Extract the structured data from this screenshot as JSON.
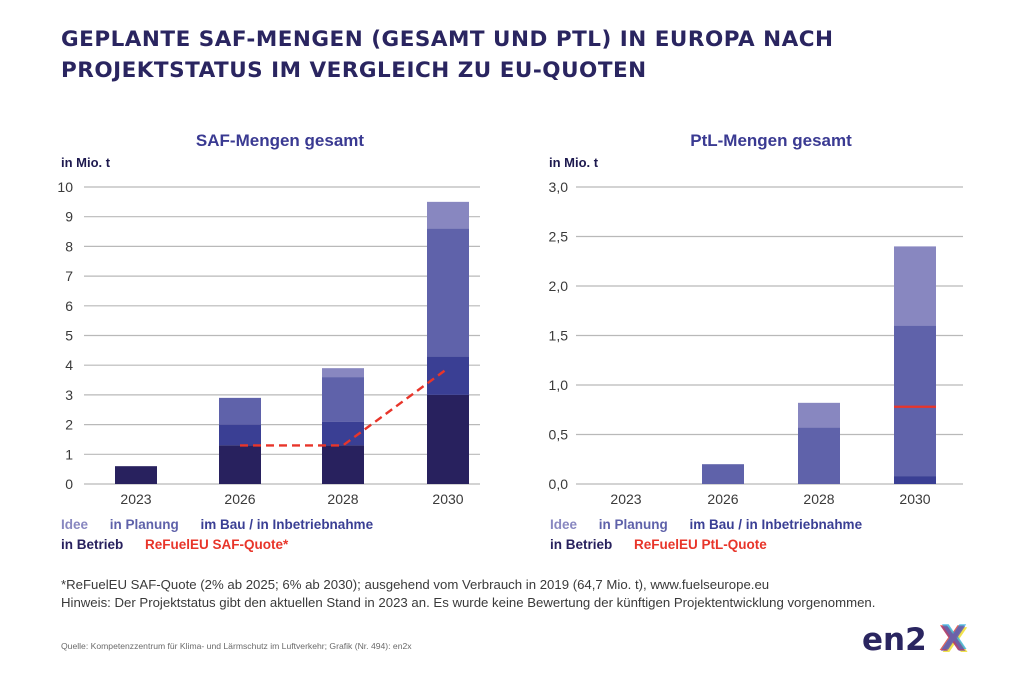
{
  "title": {
    "line1": "Geplante SAF-Mengen (gesamt und PtL) in Europa nach",
    "line2": "Projektstatus im Vergleich zu EU-Quoten"
  },
  "colors": {
    "in_betrieb": "#28215e",
    "im_bau": "#3a3f94",
    "in_planung": "#5f62aa",
    "idee": "#8887c0",
    "quote": "#e8352a",
    "title": "#2a2560"
  },
  "legend_saf": {
    "idee": "Idee",
    "in_planung": "in Planung",
    "im_bau": "im Bau / in Inbetriebnahme",
    "in_betrieb": "in Betrieb",
    "quote": "ReFuelEU SAF-Quote*"
  },
  "legend_ptl": {
    "idee": "Idee",
    "in_planung": "in Planung",
    "im_bau": "im Bau / in Inbetriebnahme",
    "in_betrieb": "in Betrieb",
    "quote": "ReFuelEU PtL-Quote"
  },
  "notes": {
    "line1": "*ReFuelEU SAF-Quote (2% ab 2025; 6% ab 2030); ausgehend vom Verbrauch in 2019 (64,7 Mio. t), www.fuelseurope.eu",
    "line2": "Hinweis: Der Projektstatus gibt den aktuellen Stand in 2023 an. Es wurde keine Bewertung der künftigen Projektentwicklung vorgenommen."
  },
  "source": "Quelle: Kompetenzzentrum für Klima- und Lärmschutz im Luftverkehr; Grafik (Nr. 494): en2x",
  "logo": {
    "text_main": "en2",
    "text_x": "X"
  },
  "chart_data": [
    {
      "type": "bar",
      "stacked": true,
      "title": "SAF-Mengen gesamt",
      "ylabel": "in Mio. t",
      "xlabel": "",
      "categories": [
        "2023",
        "2026",
        "2028",
        "2030"
      ],
      "ylim": [
        0,
        10
      ],
      "yticks": [
        0,
        1,
        2,
        3,
        4,
        5,
        6,
        7,
        8,
        9,
        10
      ],
      "ytick_labels": [
        "0",
        "1",
        "2",
        "3",
        "4",
        "5",
        "6",
        "7",
        "8",
        "9",
        "10"
      ],
      "grid": true,
      "series": [
        {
          "name": "in Betrieb",
          "key": "in_betrieb",
          "values": [
            0.6,
            1.3,
            1.3,
            3.0
          ]
        },
        {
          "name": "im Bau / in Inbetriebnahme",
          "key": "im_bau",
          "values": [
            0,
            0.7,
            0.8,
            1.3
          ]
        },
        {
          "name": "in Planung",
          "key": "in_planung",
          "values": [
            0,
            0.9,
            1.5,
            4.3
          ]
        },
        {
          "name": "Idee",
          "key": "idee",
          "values": [
            0,
            0,
            0.3,
            0.9
          ]
        }
      ],
      "quota_line": {
        "name": "ReFuelEU SAF-Quote*",
        "style": "dashed",
        "points": [
          {
            "x": "2026",
            "y": 1.3
          },
          {
            "x": "2028",
            "y": 1.3
          },
          {
            "x": "2030",
            "y": 3.9
          }
        ]
      },
      "legend": "bottom"
    },
    {
      "type": "bar",
      "stacked": true,
      "title": "PtL-Mengen gesamt",
      "ylabel": "in Mio. t",
      "xlabel": "",
      "categories": [
        "2023",
        "2026",
        "2028",
        "2030"
      ],
      "ylim": [
        0,
        3.0
      ],
      "yticks": [
        0,
        0.5,
        1.0,
        1.5,
        2.0,
        2.5,
        3.0
      ],
      "ytick_labels": [
        "0,0",
        "0,5",
        "1,0",
        "1,5",
        "2,0",
        "2,5",
        "3,0"
      ],
      "grid": true,
      "series": [
        {
          "name": "in Betrieb",
          "key": "in_betrieb",
          "values": [
            0,
            0,
            0,
            0
          ]
        },
        {
          "name": "im Bau / in Inbetriebnahme",
          "key": "im_bau",
          "values": [
            0,
            0,
            0,
            0.08
          ]
        },
        {
          "name": "in Planung",
          "key": "in_planung",
          "values": [
            0,
            0.2,
            0.57,
            1.52
          ]
        },
        {
          "name": "Idee",
          "key": "idee",
          "values": [
            0,
            0,
            0.25,
            0.8
          ]
        }
      ],
      "quota_line": {
        "name": "ReFuelEU PtL-Quote",
        "style": "solid-marker",
        "points": [
          {
            "x": "2030",
            "y": 0.78
          }
        ]
      },
      "legend": "bottom"
    }
  ]
}
